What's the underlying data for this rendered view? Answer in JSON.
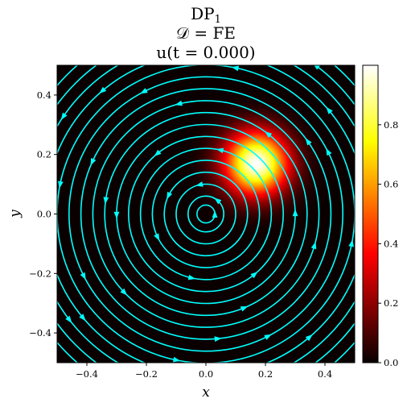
{
  "chart_data": {
    "type": "heatmap",
    "title_lines": [
      "DP",
      "𝒟 = FE",
      "u(t = 0.000)"
    ],
    "title_subscript": "1",
    "xlabel": "x",
    "ylabel": "y",
    "xlim": [
      -0.5,
      0.5
    ],
    "ylim": [
      -0.5,
      0.5
    ],
    "xticks": [
      -0.4,
      -0.2,
      0.0,
      0.2,
      0.4
    ],
    "yticks": [
      -0.4,
      -0.2,
      0.0,
      0.2,
      0.4
    ],
    "xtick_labels": [
      "−0.4",
      "−0.2",
      "0.0",
      "0.2",
      "0.4"
    ],
    "ytick_labels": [
      "−0.4",
      "−0.2",
      "0.0",
      "0.2",
      "0.4"
    ],
    "field": {
      "name": "u",
      "shape": "gaussian",
      "center": [
        0.17,
        0.17
      ],
      "peak": 1.0,
      "sigma": 0.075,
      "colormap": "hot"
    },
    "colorbar": {
      "vmin": 0.0,
      "vmax": 1.0,
      "ticks": [
        0.0,
        0.2,
        0.4,
        0.6,
        0.8
      ],
      "tick_labels": [
        "0.0",
        "0.2",
        "0.4",
        "0.6",
        "0.8"
      ]
    },
    "streamlines": {
      "color": "#00FFFF",
      "rotation": "counterclockwise",
      "center": [
        0.0,
        0.0
      ],
      "radii": [
        0.03,
        0.06,
        0.1,
        0.14,
        0.18,
        0.22,
        0.26,
        0.3,
        0.34,
        0.38,
        0.42,
        0.46,
        0.5,
        0.54,
        0.58,
        0.62,
        0.66
      ]
    }
  }
}
